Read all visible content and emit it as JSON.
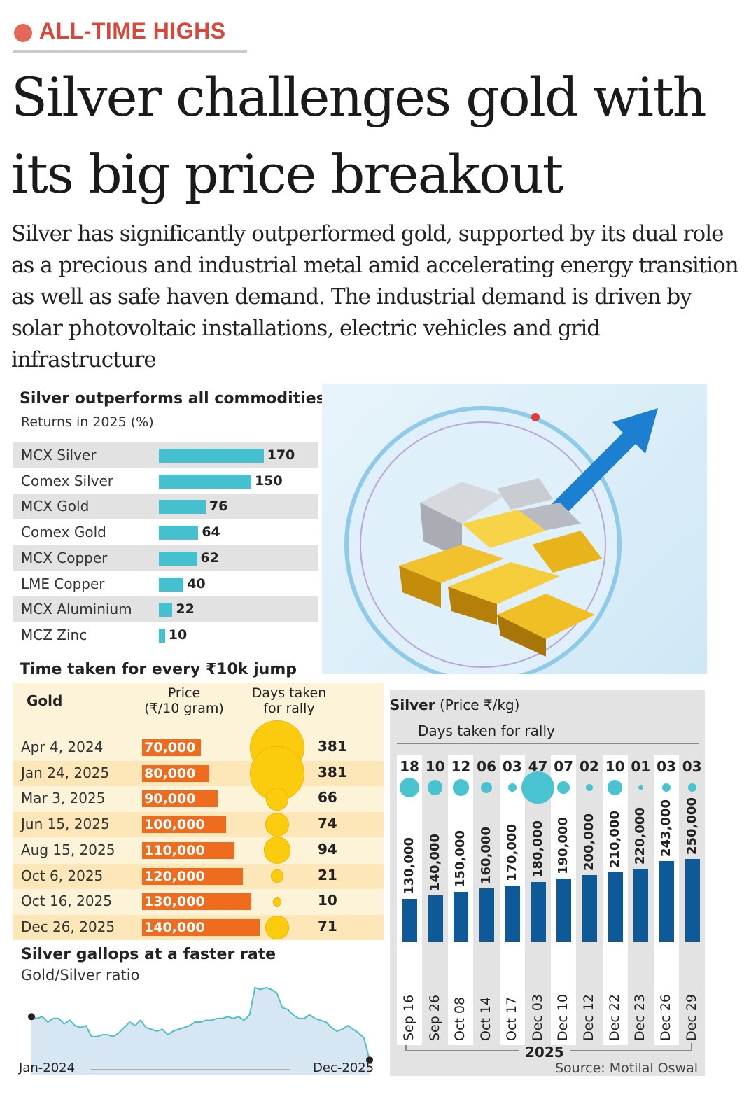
{
  "tag": "ALL-TIME HIGHS",
  "headline": "Silver challenges gold with its big price breakout",
  "intro": "Silver has significantly outperformed gold, supported by its dual role as a precious and industrial metal amid accelerating energy transition as well as safe haven demand. The industrial demand is driven by solar photovoltaic installations, electric vehicles and grid infrastructure",
  "colors": {
    "tag": "#d9473a",
    "commodity_bar": "#45c0cf",
    "gold_bar": "#ef6c1f",
    "gold_bubble": "#fbcc0e",
    "silver_bar": "#0e5a99",
    "silver_bubble": "#4ac3d1",
    "ratio_line": "#4fbfc2",
    "ratio_fill": "#d6e6f2"
  },
  "chart_data": [
    {
      "type": "bar",
      "orientation": "horizontal",
      "title": "Silver outperforms all commodities",
      "subtitle": "Returns in 2025 (%)",
      "categories": [
        "MCX Silver",
        "Comex Silver",
        "MCX Gold",
        "Comex Gold",
        "MCX Copper",
        "LME Copper",
        "MCX Aluminium",
        "MCZ Zinc"
      ],
      "values": [
        170,
        150,
        76,
        64,
        62,
        40,
        22,
        10
      ]
    },
    {
      "type": "table",
      "title": "Time taken for every ₹10k jump",
      "series_label": "Gold",
      "price_header": "Price\n(₹/10 gram)",
      "days_header": "Days taken\nfor rally",
      "rows": [
        {
          "date": "Apr 4, 2024",
          "price": 70000,
          "price_label": "70,000",
          "days": 381
        },
        {
          "date": "Jan 24, 2025",
          "price": 80000,
          "price_label": "80,000",
          "days": 381
        },
        {
          "date": "Mar 3, 2025",
          "price": 90000,
          "price_label": "90,000",
          "days": 66
        },
        {
          "date": "Jun 15, 2025",
          "price": 100000,
          "price_label": "100,000",
          "days": 74
        },
        {
          "date": "Aug 15, 2025",
          "price": 110000,
          "price_label": "110,000",
          "days": 94
        },
        {
          "date": "Oct 6, 2025",
          "price": 120000,
          "price_label": "120,000",
          "days": 21
        },
        {
          "date": "Oct 16, 2025",
          "price": 130000,
          "price_label": "130,000",
          "days": 10
        },
        {
          "date": "Dec 26, 2025",
          "price": 140000,
          "price_label": "140,000",
          "days": 71
        }
      ]
    },
    {
      "type": "bar",
      "title_bold": "Silver",
      "title_rest": "(Price ₹/kg)",
      "days_label": "Days taken for rally",
      "year_label": "2025",
      "categories": [
        "Sep 16",
        "Sep 26",
        "Oct 08",
        "Oct 14",
        "Oct 17",
        "Dec 03",
        "Dec 10",
        "Dec 12",
        "Dec 22",
        "Dec 23",
        "Dec 26",
        "Dec 29"
      ],
      "values": [
        130000,
        140000,
        150000,
        160000,
        170000,
        180000,
        190000,
        200000,
        210000,
        220000,
        243000,
        250000
      ],
      "value_labels": [
        "130,000",
        "140,000",
        "150,000",
        "160,000",
        "170,000",
        "180,000",
        "190,000",
        "200,000",
        "210,000",
        "220,000",
        "243,000",
        "250,000"
      ],
      "days_labels": [
        "18",
        "10",
        "12",
        "06",
        "03",
        "47",
        "07",
        "02",
        "10",
        "01",
        "03",
        "03"
      ],
      "days": [
        18,
        10,
        12,
        6,
        3,
        47,
        7,
        2,
        10,
        1,
        3,
        3
      ]
    },
    {
      "type": "area",
      "title": "Silver gallops at a faster rate",
      "subtitle": "Gold/Silver ratio",
      "x_start": "Jan-2024",
      "x_end": "Dec-2025",
      "values": [
        87,
        86,
        87,
        84,
        86,
        86,
        83,
        85,
        82,
        81,
        82,
        76,
        76,
        77,
        77,
        76,
        78,
        81,
        84,
        82,
        85,
        81,
        80,
        79,
        80,
        77,
        79,
        80,
        81,
        82,
        84,
        84,
        85,
        85,
        86,
        86,
        87,
        86,
        87,
        85,
        88,
        103,
        102,
        103,
        102,
        100,
        92,
        91,
        88,
        86,
        86,
        88,
        86,
        85,
        84,
        81,
        79,
        80,
        82,
        80,
        78,
        75,
        63
      ]
    }
  ],
  "source": "Source: Motilal Oswal"
}
